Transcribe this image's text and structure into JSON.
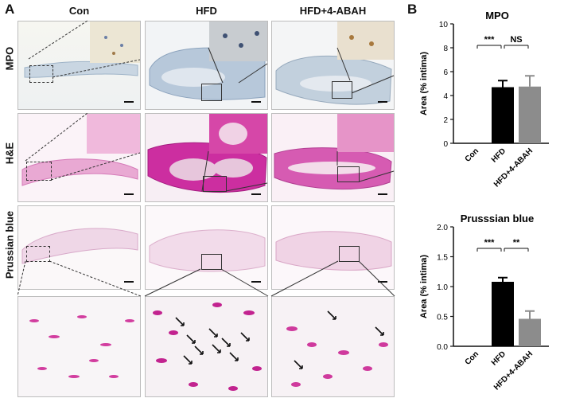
{
  "panel_a": {
    "letter": "A",
    "columns": [
      "Con",
      "HFD",
      "HFD+4-ABAH"
    ],
    "rows": [
      "MPO",
      "H&E",
      "Prussian blue"
    ]
  },
  "panel_b": {
    "letter": "B"
  },
  "chart_data": [
    {
      "type": "bar",
      "title": "MPO",
      "categories": [
        "Con",
        "HFD",
        "HFD+4-ABAH"
      ],
      "values": [
        0,
        4.7,
        4.75
      ],
      "errors": [
        0,
        0.55,
        0.9
      ],
      "bar_colors": [
        "#000000",
        "#000000",
        "#8c8c8c"
      ],
      "ylabel": "Area (% intima)",
      "ylim": [
        0,
        10
      ],
      "yticks": [
        "0",
        "2",
        "4",
        "6",
        "8",
        "10"
      ],
      "significance": [
        {
          "from": "Con",
          "to": "HFD",
          "label": "***"
        },
        {
          "from": "HFD",
          "to": "HFD+4-ABAH",
          "label": "NS"
        }
      ]
    },
    {
      "type": "bar",
      "title": "Prusssian blue",
      "categories": [
        "Con",
        "HFD",
        "HFD+4-ABAH"
      ],
      "values": [
        0,
        1.08,
        0.46
      ],
      "errors": [
        0,
        0.07,
        0.13
      ],
      "bar_colors": [
        "#000000",
        "#000000",
        "#8c8c8c"
      ],
      "ylabel": "Area (% intima)",
      "ylim": [
        0,
        2.0
      ],
      "yticks": [
        "0.0",
        "0.5",
        "1.0",
        "1.5",
        "2.0"
      ],
      "significance": [
        {
          "from": "Con",
          "to": "HFD",
          "label": "***"
        },
        {
          "from": "HFD",
          "to": "HFD+4-ABAH",
          "label": "**"
        }
      ]
    }
  ]
}
